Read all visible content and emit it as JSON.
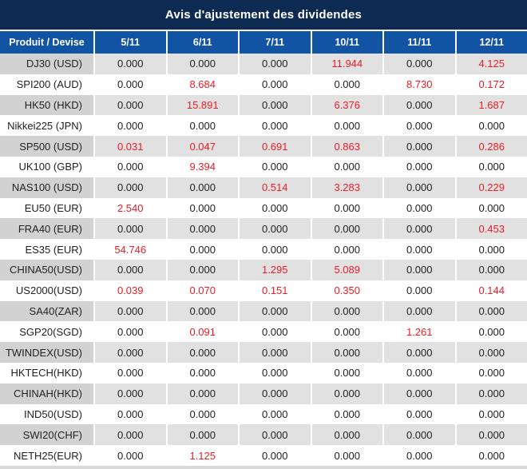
{
  "chart_data": {
    "type": "table",
    "title": "Avis d'ajustement des dividendes",
    "row_header": "Produit / Devise",
    "columns": [
      "5/11",
      "6/11",
      "7/11",
      "10/11",
      "11/11",
      "12/11"
    ],
    "rows": [
      {
        "product": "DJ30 (USD)",
        "values": [
          "0.000",
          "0.000",
          "0.000",
          "11.944",
          "0.000",
          "4.125"
        ]
      },
      {
        "product": "SPI200 (AUD)",
        "values": [
          "0.000",
          "8.684",
          "0.000",
          "0.000",
          "8.730",
          "0.172"
        ]
      },
      {
        "product": "HK50 (HKD)",
        "values": [
          "0.000",
          "15.891",
          "0.000",
          "6.376",
          "0.000",
          "1.687"
        ]
      },
      {
        "product": "Nikkei225 (JPN)",
        "values": [
          "0.000",
          "0.000",
          "0.000",
          "0.000",
          "0.000",
          "0.000"
        ]
      },
      {
        "product": "SP500 (USD)",
        "values": [
          "0.031",
          "0.047",
          "0.691",
          "0.863",
          "0.000",
          "0.286"
        ]
      },
      {
        "product": "UK100 (GBP)",
        "values": [
          "0.000",
          "9.394",
          "0.000",
          "0.000",
          "0.000",
          "0.000"
        ]
      },
      {
        "product": "NAS100 (USD)",
        "values": [
          "0.000",
          "0.000",
          "0.514",
          "3.283",
          "0.000",
          "0.229"
        ]
      },
      {
        "product": "EU50 (EUR)",
        "values": [
          "2.540",
          "0.000",
          "0.000",
          "0.000",
          "0.000",
          "0.000"
        ]
      },
      {
        "product": "FRA40 (EUR)",
        "values": [
          "0.000",
          "0.000",
          "0.000",
          "0.000",
          "0.000",
          "0.453"
        ]
      },
      {
        "product": "ES35 (EUR)",
        "values": [
          "54.746",
          "0.000",
          "0.000",
          "0.000",
          "0.000",
          "0.000"
        ]
      },
      {
        "product": "CHINA50(USD)",
        "values": [
          "0.000",
          "0.000",
          "1.295",
          "5.089",
          "0.000",
          "0.000"
        ]
      },
      {
        "product": "US2000(USD)",
        "values": [
          "0.039",
          "0.070",
          "0.151",
          "0.350",
          "0.000",
          "0.144"
        ]
      },
      {
        "product": "SA40(ZAR)",
        "values": [
          "0.000",
          "0.000",
          "0.000",
          "0.000",
          "0.000",
          "0.000"
        ]
      },
      {
        "product": "SGP20(SGD)",
        "values": [
          "0.000",
          "0.091",
          "0.000",
          "0.000",
          "1.261",
          "0.000"
        ]
      },
      {
        "product": "TWINDEX(USD)",
        "values": [
          "0.000",
          "0.000",
          "0.000",
          "0.000",
          "0.000",
          "0.000"
        ]
      },
      {
        "product": "HKTECH(HKD)",
        "values": [
          "0.000",
          "0.000",
          "0.000",
          "0.000",
          "0.000",
          "0.000"
        ]
      },
      {
        "product": "CHINAH(HKD)",
        "values": [
          "0.000",
          "0.000",
          "0.000",
          "0.000",
          "0.000",
          "0.000"
        ]
      },
      {
        "product": "IND50(USD)",
        "values": [
          "0.000",
          "0.000",
          "0.000",
          "0.000",
          "0.000",
          "0.000"
        ]
      },
      {
        "product": "SWI20(CHF)",
        "values": [
          "0.000",
          "0.000",
          "0.000",
          "0.000",
          "0.000",
          "0.000"
        ]
      },
      {
        "product": "NETH25(EUR)",
        "values": [
          "0.000",
          "1.125",
          "0.000",
          "0.000",
          "0.000",
          "0.000"
        ]
      }
    ]
  },
  "colors": {
    "title_bg": "#0d2b52",
    "header_bg": "#1254a4",
    "row_gray_label": "#d2d2d3",
    "row_gray_value": "#e1e1e2",
    "text": "#222222",
    "highlight_red": "#ee1c25"
  }
}
